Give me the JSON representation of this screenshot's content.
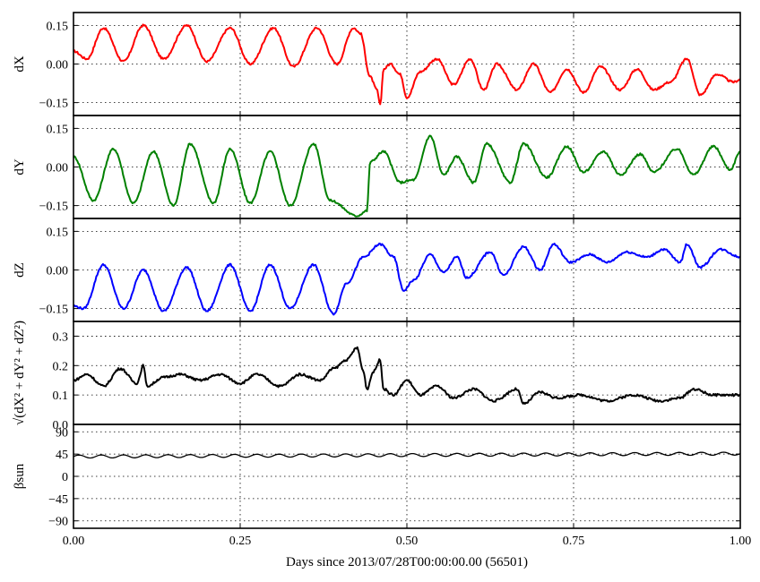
{
  "figure": {
    "xlabel": "Days since 2013/07/28T00:00:00.00 (56501)",
    "xlim": [
      0.0,
      1.0
    ],
    "xticks": [
      0.0,
      0.25,
      0.5,
      0.75,
      1.0
    ],
    "xtick_labels": [
      "0.00",
      "0.25",
      "0.50",
      "0.75",
      "1.00"
    ]
  },
  "chart_data": [
    {
      "type": "line",
      "ylabel": "dX",
      "ylim": [
        -0.2,
        0.2
      ],
      "yticks": [
        0.15,
        0.0,
        -0.15
      ],
      "ytick_labels": [
        "0.15",
        "0.00",
        "−0.15"
      ],
      "grid": true,
      "color": "#ff0000",
      "series": [
        {
          "x": [
            0.0,
            0.02,
            0.045,
            0.075,
            0.105,
            0.135,
            0.17,
            0.2,
            0.235,
            0.265,
            0.3,
            0.33,
            0.365,
            0.395,
            0.42,
            0.43,
            0.445,
            0.455,
            0.46,
            0.465,
            0.475,
            0.49,
            0.5,
            0.52,
            0.545,
            0.57,
            0.595,
            0.615,
            0.635,
            0.665,
            0.69,
            0.715,
            0.74,
            0.765,
            0.79,
            0.82,
            0.845,
            0.87,
            0.895,
            0.92,
            0.94,
            0.965,
            0.99,
            1.0
          ],
          "y": [
            0.05,
            0.02,
            0.14,
            0.01,
            0.15,
            0.02,
            0.15,
            0.01,
            0.14,
            0.0,
            0.14,
            -0.01,
            0.14,
            0.0,
            0.14,
            0.12,
            -0.05,
            -0.1,
            -0.16,
            -0.02,
            0.0,
            -0.04,
            -0.13,
            -0.03,
            0.02,
            -0.08,
            0.02,
            -0.1,
            0.0,
            -0.1,
            0.0,
            -0.11,
            -0.02,
            -0.11,
            -0.01,
            -0.1,
            -0.02,
            -0.1,
            -0.07,
            0.02,
            -0.12,
            -0.04,
            -0.07,
            -0.06
          ]
        }
      ]
    },
    {
      "type": "line",
      "ylabel": "dY",
      "ylim": [
        -0.2,
        0.2
      ],
      "yticks": [
        0.15,
        0.0,
        -0.15
      ],
      "ytick_labels": [
        "0.15",
        "0.00",
        "−0.15"
      ],
      "grid": true,
      "color": "#008000",
      "series": [
        {
          "x": [
            0.0,
            0.03,
            0.06,
            0.09,
            0.12,
            0.15,
            0.175,
            0.21,
            0.235,
            0.265,
            0.295,
            0.325,
            0.36,
            0.385,
            0.425,
            0.44,
            0.445,
            0.465,
            0.49,
            0.51,
            0.535,
            0.555,
            0.575,
            0.6,
            0.62,
            0.655,
            0.675,
            0.71,
            0.74,
            0.765,
            0.795,
            0.82,
            0.85,
            0.87,
            0.905,
            0.93,
            0.96,
            0.985,
            1.0
          ],
          "y": [
            0.04,
            -0.13,
            0.07,
            -0.14,
            0.06,
            -0.15,
            0.09,
            -0.14,
            0.07,
            -0.14,
            0.06,
            -0.15,
            0.09,
            -0.13,
            -0.19,
            -0.17,
            0.02,
            0.06,
            -0.06,
            -0.05,
            0.12,
            -0.03,
            0.04,
            -0.06,
            0.09,
            -0.06,
            0.09,
            -0.04,
            0.08,
            -0.02,
            0.06,
            -0.03,
            0.05,
            -0.02,
            0.07,
            -0.03,
            0.08,
            -0.01,
            0.06
          ]
        }
      ]
    },
    {
      "type": "line",
      "ylabel": "dZ",
      "ylim": [
        -0.2,
        0.2
      ],
      "yticks": [
        0.15,
        0.0,
        -0.15
      ],
      "ytick_labels": [
        "0.15",
        "0.00",
        "−0.15"
      ],
      "grid": true,
      "color": "#0000ff",
      "series": [
        {
          "x": [
            0.0,
            0.015,
            0.045,
            0.075,
            0.105,
            0.135,
            0.17,
            0.2,
            0.235,
            0.265,
            0.295,
            0.325,
            0.36,
            0.39,
            0.41,
            0.435,
            0.46,
            0.48,
            0.495,
            0.51,
            0.535,
            0.555,
            0.575,
            0.59,
            0.625,
            0.645,
            0.675,
            0.7,
            0.72,
            0.745,
            0.775,
            0.8,
            0.83,
            0.86,
            0.885,
            0.91,
            0.92,
            0.94,
            0.97,
            1.0
          ],
          "y": [
            -0.14,
            -0.15,
            0.02,
            -0.15,
            0.0,
            -0.16,
            0.01,
            -0.16,
            0.02,
            -0.16,
            0.02,
            -0.15,
            0.02,
            -0.17,
            -0.05,
            0.05,
            0.1,
            0.05,
            -0.08,
            -0.04,
            0.06,
            -0.01,
            0.05,
            -0.03,
            0.07,
            -0.02,
            0.09,
            0.0,
            0.1,
            0.03,
            0.06,
            0.03,
            0.07,
            0.05,
            0.08,
            0.03,
            0.1,
            0.01,
            0.08,
            0.05
          ]
        }
      ]
    },
    {
      "type": "line",
      "ylabel": "√(dX² + dY² + dZ²)",
      "ylim": [
        0.0,
        0.35
      ],
      "yticks": [
        0.0,
        0.1,
        0.2,
        0.3
      ],
      "ytick_labels": [
        "0.0",
        "0.1",
        "0.2",
        "0.3"
      ],
      "grid": true,
      "color": "#000000",
      "series": [
        {
          "x": [
            0.0,
            0.02,
            0.045,
            0.07,
            0.095,
            0.105,
            0.11,
            0.135,
            0.16,
            0.19,
            0.22,
            0.25,
            0.275,
            0.31,
            0.34,
            0.37,
            0.39,
            0.41,
            0.425,
            0.435,
            0.44,
            0.45,
            0.46,
            0.465,
            0.48,
            0.5,
            0.52,
            0.545,
            0.57,
            0.6,
            0.63,
            0.665,
            0.675,
            0.7,
            0.725,
            0.76,
            0.8,
            0.84,
            0.88,
            0.91,
            0.93,
            0.96,
            1.0
          ],
          "y": [
            0.15,
            0.17,
            0.13,
            0.19,
            0.14,
            0.2,
            0.13,
            0.16,
            0.17,
            0.15,
            0.17,
            0.14,
            0.17,
            0.13,
            0.17,
            0.15,
            0.19,
            0.22,
            0.26,
            0.18,
            0.12,
            0.18,
            0.22,
            0.12,
            0.1,
            0.15,
            0.1,
            0.13,
            0.09,
            0.12,
            0.08,
            0.12,
            0.07,
            0.11,
            0.09,
            0.1,
            0.08,
            0.1,
            0.08,
            0.09,
            0.12,
            0.1,
            0.1
          ]
        }
      ]
    },
    {
      "type": "line",
      "ylabel": "βsun",
      "ylim": [
        -105,
        105
      ],
      "yticks": [
        90,
        45,
        0,
        -45,
        -90
      ],
      "ytick_labels": [
        "90",
        "45",
        "0",
        "−45",
        "−90"
      ],
      "grid": true,
      "color": "#000000",
      "series": [
        {
          "x_start": 0.0,
          "x_end": 1.0,
          "mean_start": 40,
          "mean_end": 46,
          "amplitude": 3,
          "cycles": 30
        }
      ]
    }
  ]
}
